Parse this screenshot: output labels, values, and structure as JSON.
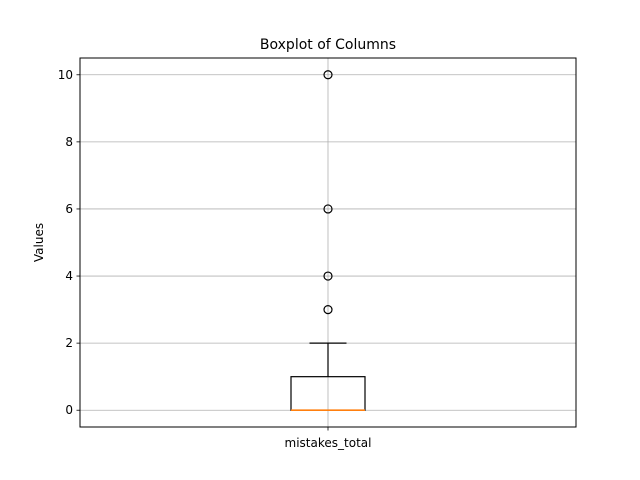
{
  "chart_data": {
    "type": "box",
    "title": "Boxplot of Columns",
    "xlabel": "",
    "ylabel": "Values",
    "categories": [
      "mistakes_total"
    ],
    "boxes": [
      {
        "name": "mistakes_total",
        "whisker_low": 0,
        "q1": 0,
        "median": 0,
        "q3": 1,
        "whisker_high": 2,
        "outliers": [
          3,
          4,
          6,
          10
        ]
      }
    ],
    "ylim": [
      -0.5,
      10.5
    ],
    "yticks": [
      0,
      2,
      4,
      6,
      8,
      10
    ],
    "grid": true,
    "colors": {
      "box": "#000000",
      "median": "#ff7f0e",
      "grid": "#b0b0b0"
    }
  }
}
